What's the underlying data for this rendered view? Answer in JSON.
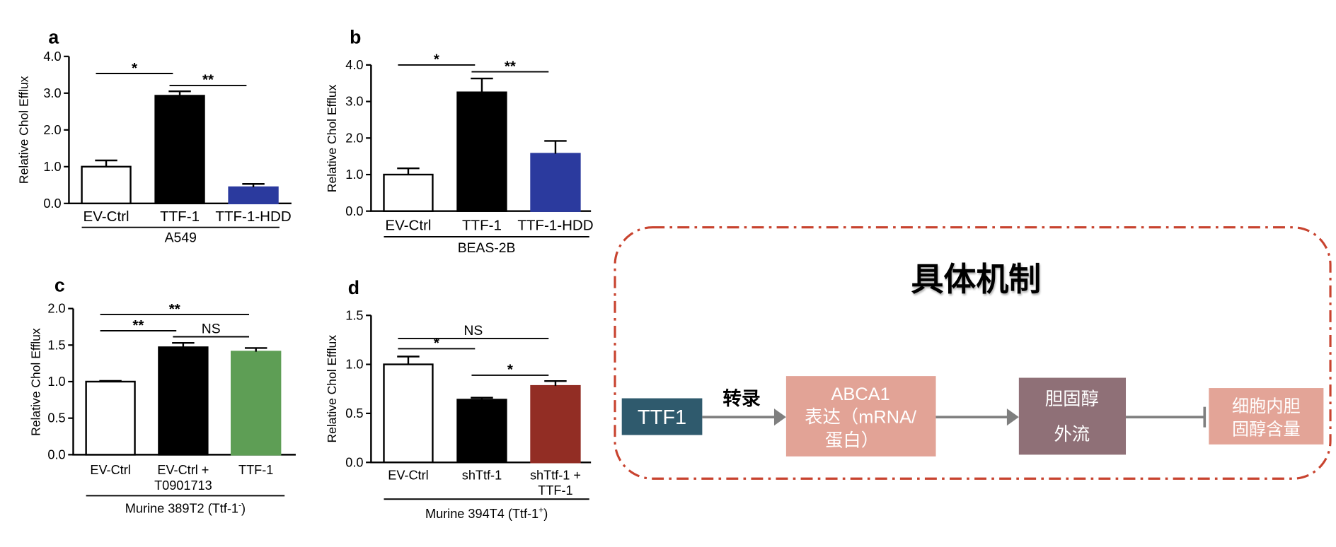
{
  "chart_data": [
    {
      "panel": "a",
      "type": "bar",
      "categories": [
        "EV-Ctrl",
        "TTF-1",
        "TTF-1-HDD"
      ],
      "values": [
        1.0,
        2.93,
        0.44
      ],
      "errors": [
        0.17,
        0.12,
        0.09
      ],
      "bar_colors": [
        "#FFFFFF",
        "#000000",
        "#2B3A9E"
      ],
      "ylabel": "Relative Chol Efflux",
      "ylim": [
        0,
        4
      ],
      "yticks": [
        "0.0",
        "1.0",
        "2.0",
        "3.0",
        "4.0"
      ],
      "group_label": {
        "text": "A549"
      },
      "significance": [
        {
          "pair": [
            0,
            1
          ],
          "label": "*"
        },
        {
          "pair": [
            1,
            2
          ],
          "label": "**"
        }
      ],
      "grid": false
    },
    {
      "panel": "b",
      "type": "bar",
      "categories": [
        "EV-Ctrl",
        "TTF-1",
        "TTF-1-HDD"
      ],
      "values": [
        1.0,
        3.25,
        1.57
      ],
      "errors": [
        0.17,
        0.38,
        0.35
      ],
      "bar_colors": [
        "#FFFFFF",
        "#000000",
        "#2B3A9E"
      ],
      "ylabel": "Relative Chol Efflux",
      "ylim": [
        0,
        4
      ],
      "yticks": [
        "0.0",
        "1.0",
        "2.0",
        "3.0",
        "4.0"
      ],
      "group_label": {
        "text": "BEAS-2B"
      },
      "significance": [
        {
          "pair": [
            0,
            1
          ],
          "label": "*"
        },
        {
          "pair": [
            1,
            2
          ],
          "label": "**"
        }
      ],
      "grid": false
    },
    {
      "panel": "c",
      "type": "bar",
      "categories": [
        "EV-Ctrl",
        "EV-Ctrl +\nT0901713",
        "TTF-1"
      ],
      "values": [
        1.0,
        1.47,
        1.41
      ],
      "errors": [
        0.01,
        0.06,
        0.05
      ],
      "bar_colors": [
        "#FFFFFF",
        "#000000",
        "#5E9E55"
      ],
      "ylabel": "Relative Chol Efflux",
      "ylim": [
        0,
        2
      ],
      "yticks": [
        "0.0",
        "0.5",
        "1.0",
        "1.5",
        "2.0"
      ],
      "group_label": {
        "text": "Murine 389T2 (Ttf-1",
        "sup": "-",
        "end": ")"
      },
      "significance": [
        {
          "pair": [
            0,
            2
          ],
          "label": "**"
        },
        {
          "pair": [
            0,
            1
          ],
          "label": "**"
        },
        {
          "pair": [
            1,
            2
          ],
          "label": "NS"
        }
      ],
      "grid": false
    },
    {
      "panel": "d",
      "type": "bar",
      "categories": [
        "EV-Ctrl",
        "shTtf-1",
        "shTtf-1 +\nTTF-1"
      ],
      "values": [
        1.0,
        0.64,
        0.78
      ],
      "errors": [
        0.08,
        0.02,
        0.05
      ],
      "bar_colors": [
        "#FFFFFF",
        "#000000",
        "#922D24"
      ],
      "ylabel": "Relative Chol Efflux",
      "ylim": [
        0,
        1.5
      ],
      "yticks": [
        "0.0",
        "0.5",
        "1.0",
        "1.5"
      ],
      "group_label": {
        "text": "Murine 394T4 (Ttf-1",
        "sup": "+",
        "end": ")"
      },
      "significance": [
        {
          "pair": [
            0,
            2
          ],
          "label": "NS"
        },
        {
          "pair": [
            0,
            1
          ],
          "label": "*"
        },
        {
          "pair": [
            1,
            2
          ],
          "label": "*"
        }
      ],
      "grid": false
    }
  ],
  "mechanism": {
    "title": "具体机制",
    "accent_color": "#B3341F",
    "frame_color": "#C8432F",
    "nodes": [
      {
        "lines": [
          "TTF1"
        ],
        "color": "#2F5A6D"
      },
      {
        "lines": [
          "ABCA1",
          "表达（mRNA/",
          "蛋白）"
        ],
        "color": "#E2A396"
      },
      {
        "lines": [
          "胆固醇",
          "外流"
        ],
        "color": "#8F7077"
      },
      {
        "lines": [
          "细胞内胆",
          "固醇含量"
        ],
        "color": "#E3A497"
      }
    ],
    "edges": [
      {
        "from": 0,
        "to": 1,
        "kind": "arrow",
        "label": "转录"
      },
      {
        "from": 1,
        "to": 2,
        "kind": "arrow"
      },
      {
        "from": 2,
        "to": 3,
        "kind": "inhibition"
      }
    ]
  }
}
